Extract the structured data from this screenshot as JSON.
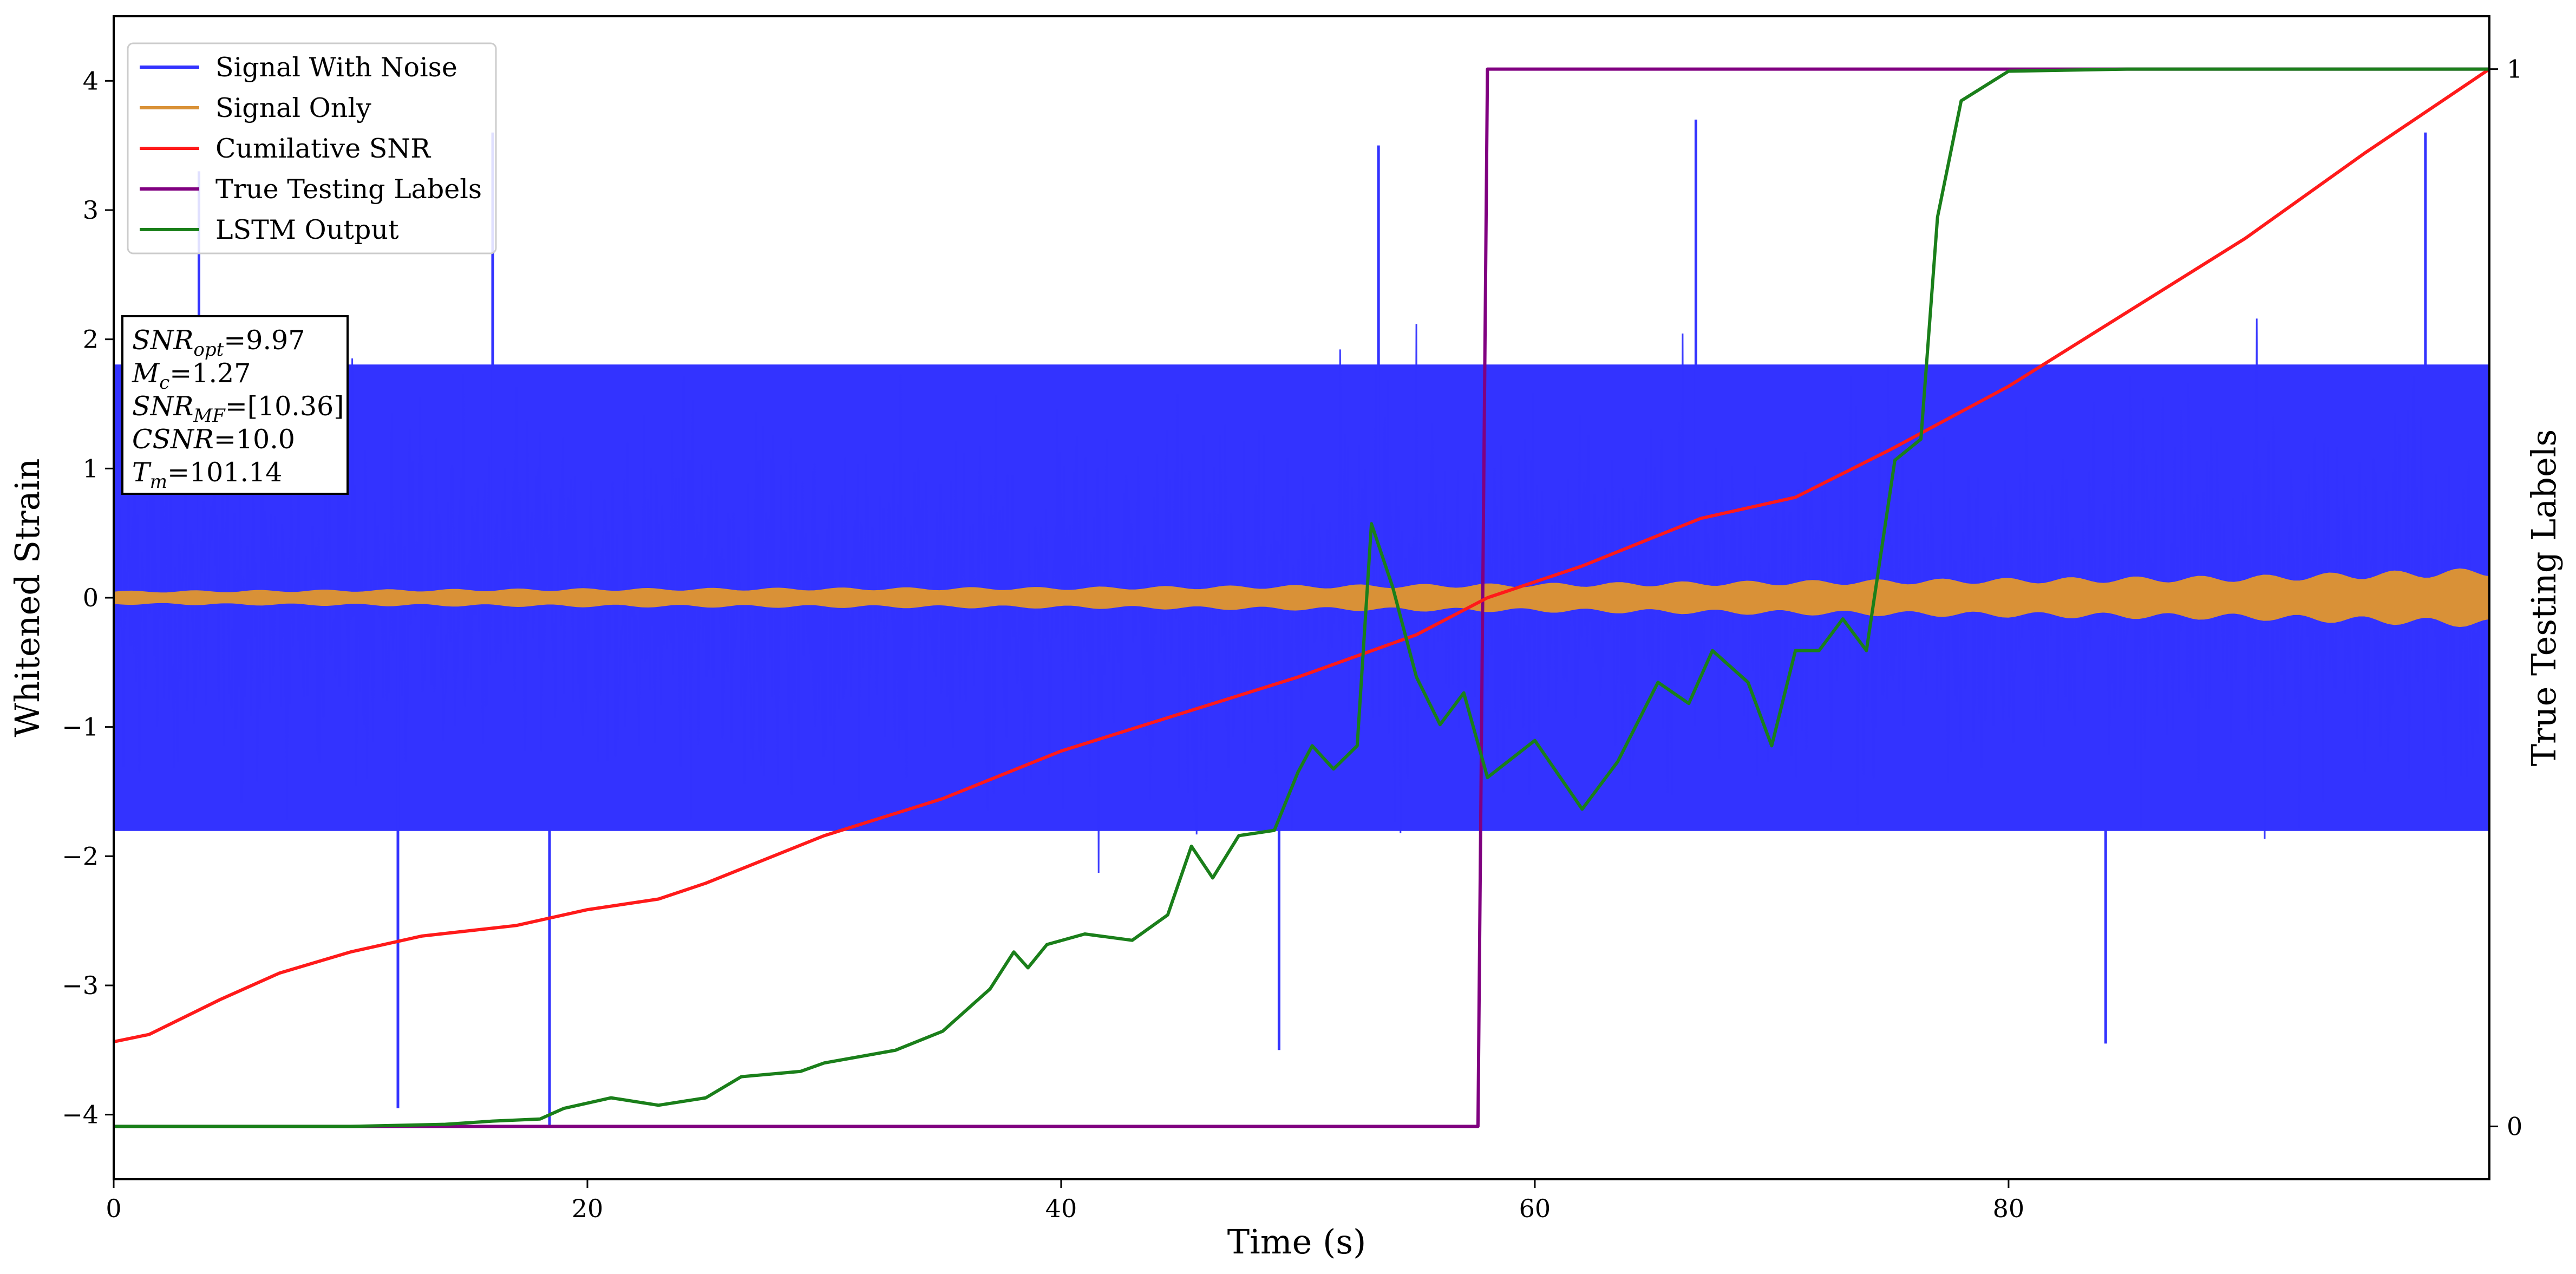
{
  "chart_data": {
    "type": "line",
    "xlabel": "Time (s)",
    "ylabel": "Whitened Strain",
    "y2label": "True Testing Labels",
    "xlim": [
      0,
      100.3
    ],
    "ylim": [
      -4.5,
      4.5
    ],
    "y2lim": [
      -0.05,
      1.05
    ],
    "xticks": [
      0,
      20,
      40,
      60,
      80
    ],
    "yticks": [
      -4,
      -3,
      -2,
      -1,
      0,
      1,
      2,
      3,
      4
    ],
    "y2ticks": [
      0,
      1
    ],
    "tick_labels": {
      "x": [
        "0",
        "20",
        "40",
        "60",
        "80"
      ],
      "y": [
        "−4",
        "−3",
        "−2",
        "−1",
        "0",
        "1",
        "2",
        "3",
        "4"
      ],
      "y2": [
        "0",
        "1"
      ]
    },
    "grid": false,
    "legend_position": "top-left",
    "series": [
      {
        "name": "Signal With Noise",
        "color": "#3333ff",
        "axis": "left",
        "band_envelope": {
          "typical_abs": 1.9,
          "peak_max": 3.6,
          "peak_min": -4.1
        },
        "spikes": [
          [
            18.4,
            -4.1
          ],
          [
            12.0,
            -3.95
          ],
          [
            3.6,
            3.3
          ],
          [
            16.0,
            3.6
          ],
          [
            53.4,
            3.5
          ],
          [
            66.8,
            3.7
          ],
          [
            97.6,
            3.6
          ],
          [
            84.1,
            -3.45
          ],
          [
            49.2,
            -3.5
          ]
        ]
      },
      {
        "name": "Signal Only",
        "color": "#d99137",
        "axis": "left",
        "amplitude": [
          [
            0,
            0.05
          ],
          [
            20,
            0.07
          ],
          [
            40,
            0.08
          ],
          [
            60,
            0.11
          ],
          [
            75,
            0.14
          ],
          [
            90,
            0.17
          ],
          [
            100.3,
            0.23
          ]
        ]
      },
      {
        "name": "Cumilative SNR",
        "color": "#ff1a1a",
        "axis": "right",
        "points": [
          [
            0,
            0.08
          ],
          [
            1.5,
            0.087
          ],
          [
            4.5,
            0.12
          ],
          [
            7,
            0.145
          ],
          [
            10,
            0.165
          ],
          [
            13,
            0.18
          ],
          [
            17,
            0.19
          ],
          [
            20,
            0.205
          ],
          [
            23,
            0.215
          ],
          [
            25,
            0.23
          ],
          [
            30,
            0.275
          ],
          [
            35,
            0.31
          ],
          [
            40,
            0.355
          ],
          [
            45,
            0.39
          ],
          [
            50,
            0.425
          ],
          [
            55,
            0.465
          ],
          [
            58,
            0.5
          ],
          [
            62,
            0.53
          ],
          [
            67,
            0.575
          ],
          [
            71,
            0.595
          ],
          [
            75,
            0.64
          ],
          [
            80,
            0.7
          ],
          [
            85,
            0.77
          ],
          [
            90,
            0.84
          ],
          [
            95,
            0.92
          ],
          [
            100.3,
            1.0
          ]
        ]
      },
      {
        "name": "True Testing Labels",
        "color": "#800080",
        "axis": "right",
        "points": [
          [
            0,
            0
          ],
          [
            57.6,
            0
          ],
          [
            58.0,
            1
          ],
          [
            100.3,
            1
          ]
        ]
      },
      {
        "name": "LSTM Output",
        "color": "#1a7f1a",
        "axis": "right",
        "points": [
          [
            0,
            0
          ],
          [
            10,
            0
          ],
          [
            14,
            0.002
          ],
          [
            16,
            0.005
          ],
          [
            18,
            0.007
          ],
          [
            19,
            0.017
          ],
          [
            21,
            0.027
          ],
          [
            23,
            0.02
          ],
          [
            25,
            0.027
          ],
          [
            26.5,
            0.047
          ],
          [
            28,
            0.05
          ],
          [
            29,
            0.052
          ],
          [
            30,
            0.06
          ],
          [
            33,
            0.072
          ],
          [
            35,
            0.09
          ],
          [
            37,
            0.13
          ],
          [
            38,
            0.165
          ],
          [
            38.6,
            0.15
          ],
          [
            39.4,
            0.172
          ],
          [
            41,
            0.182
          ],
          [
            43,
            0.176
          ],
          [
            44.5,
            0.2
          ],
          [
            45.5,
            0.265
          ],
          [
            46.4,
            0.235
          ],
          [
            47.5,
            0.275
          ],
          [
            49,
            0.28
          ],
          [
            50,
            0.335
          ],
          [
            50.6,
            0.36
          ],
          [
            51.5,
            0.338
          ],
          [
            52.5,
            0.36
          ],
          [
            53.1,
            0.57
          ],
          [
            54,
            0.51
          ],
          [
            55,
            0.425
          ],
          [
            56,
            0.38
          ],
          [
            57,
            0.41
          ],
          [
            58,
            0.33
          ],
          [
            60,
            0.365
          ],
          [
            62,
            0.3
          ],
          [
            63.5,
            0.345
          ],
          [
            65.2,
            0.42
          ],
          [
            66.5,
            0.4
          ],
          [
            67.5,
            0.45
          ],
          [
            69,
            0.42
          ],
          [
            70,
            0.36
          ],
          [
            71,
            0.45
          ],
          [
            72,
            0.45
          ],
          [
            73,
            0.48
          ],
          [
            74,
            0.45
          ],
          [
            75.2,
            0.63
          ],
          [
            76.3,
            0.65
          ],
          [
            77,
            0.86
          ],
          [
            78,
            0.97
          ],
          [
            80,
            0.998
          ],
          [
            85,
            1.0
          ],
          [
            100.3,
            1.0
          ]
        ]
      }
    ],
    "annotation_box": {
      "lines": [
        {
          "base": "SNR",
          "sub": "opt",
          "value": "=9.97"
        },
        {
          "base": "M",
          "sub": "c",
          "value": "=1.27"
        },
        {
          "base": "SNR",
          "sub": "MF",
          "value": "=[10.36]"
        },
        {
          "base": "CSNR",
          "sub": "",
          "value": "=10.0"
        },
        {
          "base": "T",
          "sub": "m",
          "value": "=101.14"
        }
      ]
    }
  }
}
